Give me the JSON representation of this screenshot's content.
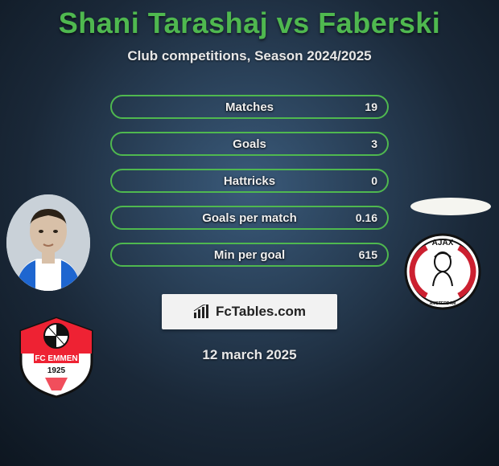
{
  "title": "Shani Tarashaj vs Faberski",
  "subtitle": "Club competitions, Season 2024/2025",
  "date_text": "12 march 2025",
  "brand": {
    "label": "FcTables.com"
  },
  "colors": {
    "accent": "#4fb84f",
    "text_light": "#f0f0f0",
    "bg_outer": "#0d1620",
    "bg_inner": "#3a5a7a"
  },
  "left_club": {
    "name": "FC Emmen",
    "year": "1925",
    "colors": {
      "top": "#ee2233",
      "bottom": "#ffffff",
      "ball": "#111111"
    }
  },
  "right_club": {
    "name": "Ajax",
    "text": "AJAX",
    "sub": "AMSTERDAM",
    "colors": {
      "ring": "#111111",
      "red": "#cc2030",
      "white": "#ffffff"
    }
  },
  "stats": [
    {
      "label": "Matches",
      "value_right": "19"
    },
    {
      "label": "Goals",
      "value_right": "3"
    },
    {
      "label": "Hattricks",
      "value_right": "0"
    },
    {
      "label": "Goals per match",
      "value_right": "0.16"
    },
    {
      "label": "Min per goal",
      "value_right": "615"
    }
  ]
}
